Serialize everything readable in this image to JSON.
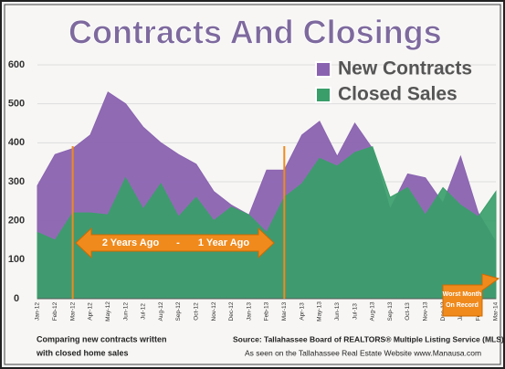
{
  "chart_data": {
    "type": "area",
    "title": "Contracts And Closings",
    "categories": [
      "Jan-12",
      "Feb-12",
      "Mar-12",
      "Apr-12",
      "May-12",
      "Jun-12",
      "Jul-12",
      "Aug-12",
      "Sep-12",
      "Oct-12",
      "Nov-12",
      "Dec-12",
      "Jan-13",
      "Feb-13",
      "Mar-13",
      "Apr-13",
      "May-13",
      "Jun-13",
      "Jul-13",
      "Aug-13",
      "Sep-13",
      "Oct-13",
      "Nov-13",
      "Dec-13",
      "Jan-14",
      "Feb-14",
      "Mar-14"
    ],
    "series": [
      {
        "name": "New Contracts",
        "color": "#8a63b0",
        "values": [
          290,
          370,
          385,
          420,
          530,
          500,
          440,
          400,
          370,
          345,
          275,
          240,
          215,
          330,
          330,
          420,
          455,
          365,
          450,
          385,
          230,
          320,
          310,
          245,
          365,
          220,
          145
        ]
      },
      {
        "name": "Closed Sales",
        "color": "#3a9e6a",
        "values": [
          170,
          150,
          220,
          220,
          215,
          310,
          230,
          295,
          210,
          260,
          200,
          235,
          215,
          170,
          260,
          295,
          360,
          340,
          375,
          390,
          260,
          285,
          215,
          285,
          240,
          210,
          275
        ]
      }
    ],
    "ylim": [
      0,
      600
    ],
    "yticks": [
      0,
      100,
      200,
      300,
      400,
      500,
      600
    ],
    "grid": true,
    "annotations": {
      "range_left": "2 Years Ago",
      "range_dash": "-",
      "range_right": "1 Year Ago",
      "worst_1": "Worst Month",
      "worst_2": "On Record",
      "footer_1": "Comparing new contracts written",
      "footer_2": "with closed home sales",
      "source": "Source: Tallahassee Board of REALTORS® Multiple Listing Service (MLS)",
      "site": "As seen on the Tallahassee Real Estate Website www.Manausa.com"
    }
  }
}
